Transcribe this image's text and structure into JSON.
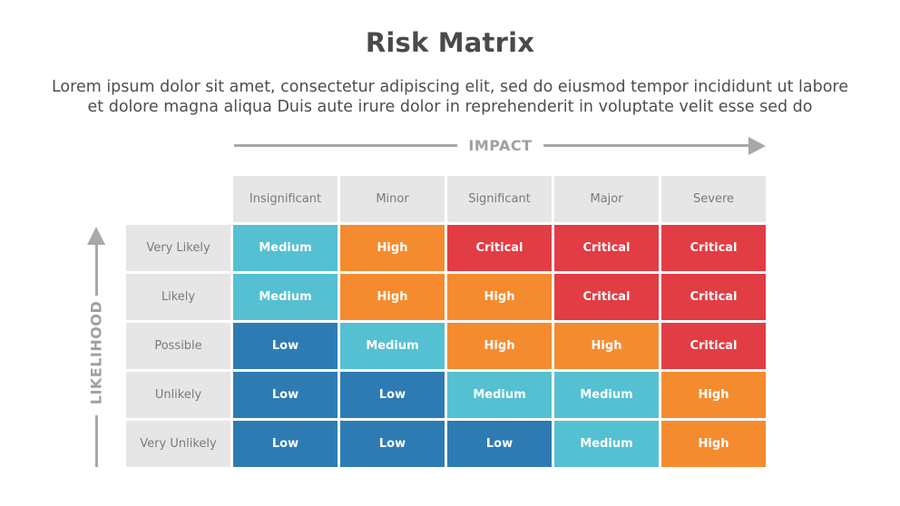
{
  "title": "Risk Matrix",
  "description": [
    "Lorem ipsum dolor sit amet, consectetur adipiscing elit, sed do eiusmod tempor incididunt ut labore",
    "et dolore magna aliqua Duis aute irure dolor in reprehenderit in voluptate velit esse sed do"
  ],
  "impact_label": "IMPACT",
  "likelihood_label": "LIKELIHOOD",
  "impact_levels": [
    "Insignificant",
    "Minor",
    "Significant",
    "Major",
    "Severe"
  ],
  "rows": [
    {
      "label": "Very Likely",
      "cells": [
        "Medium",
        "High",
        "Critical",
        "Critical",
        "Critical"
      ]
    },
    {
      "label": "Likely",
      "cells": [
        "Medium",
        "High",
        "High",
        "Critical",
        "Critical"
      ]
    },
    {
      "label": "Possible",
      "cells": [
        "Low",
        "Medium",
        "High",
        "High",
        "Critical"
      ]
    },
    {
      "label": "Unlikely",
      "cells": [
        "Low",
        "Low",
        "Medium",
        "Medium",
        "High"
      ]
    },
    {
      "label": "Very Unlikely",
      "cells": [
        "Low",
        "Low",
        "Low",
        "Medium",
        "High"
      ]
    }
  ],
  "colors": {
    "Low": "#2e7bb4",
    "Medium": "#55c0d2",
    "High": "#f58b2f",
    "Critical": "#e23c44",
    "header_bg": "#e6e6e6",
    "arrow": "#a8a8a8"
  }
}
